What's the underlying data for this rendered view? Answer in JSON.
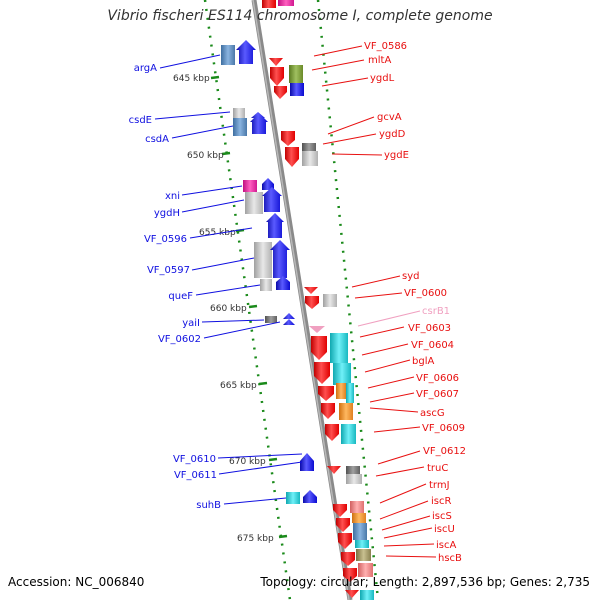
{
  "title": "Vibrio fischeri ES114 chromosome I, complete genome",
  "footer": {
    "accession": "Accession: NC_006840",
    "summary": "Topology: circular; Length: 2,897,536 bp; Genes: 2,735"
  },
  "kbp_ticks": [
    "645 kbp",
    "650 kbp",
    "655 kbp",
    "660 kbp",
    "665 kbp",
    "670 kbp",
    "675 kbp"
  ],
  "left_labels": [
    "argA",
    "csdE",
    "csdA",
    "xni",
    "ygdH",
    "VF_0596",
    "VF_0597",
    "queF",
    "yaiI",
    "VF_0602",
    "VF_0610",
    "VF_0611",
    "suhB"
  ],
  "right_labels": [
    "VF_0586",
    "mltA",
    "ygdL",
    "gcvA",
    "ygdD",
    "ygdE",
    "syd",
    "VF_0600",
    "csrB1",
    "VF_0603",
    "VF_0604",
    "bglA",
    "VF_0606",
    "VF_0607",
    "ascG",
    "VF_0609",
    "VF_0612",
    "truC",
    "trmJ",
    "iscR",
    "iscS",
    "iscU",
    "iscA",
    "hscB"
  ],
  "colors": {
    "forward": "#1010e0",
    "reverse": "#e81010",
    "ncrna": "#f0a0c0",
    "backbone": "#8a8a8a",
    "tick": "#1a8a1a"
  }
}
